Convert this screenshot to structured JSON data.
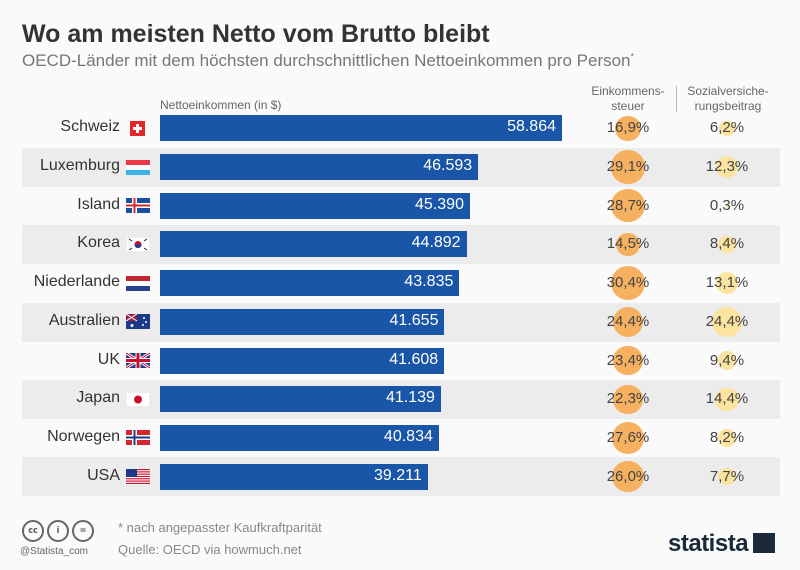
{
  "title": "Wo am meisten Netto vom Brutto bleibt",
  "subtitle": "OECD-Länder mit dem höchsten durchschnittlichen Nettoeinkommen pro Person",
  "subtitle_mark": "*",
  "colors": {
    "bar": "#1a56a8",
    "tax_bubble": "#f5b060",
    "social_bubble": "#fbe3a0",
    "alt_row": "#ececec"
  },
  "chart_data": {
    "type": "bar",
    "orientation": "horizontal",
    "series_label": "Nettoeinkommen (in $)",
    "tax_label_1": "Einkommens-",
    "tax_label_2": "steuer",
    "social_label_1": "Sozialversiche-",
    "social_label_2": "rungsbeitrag",
    "categories": [
      "Schweiz",
      "Luxemburg",
      "Island",
      "Korea",
      "Niederlande",
      "Australien",
      "UK",
      "Japan",
      "Norwegen",
      "USA"
    ],
    "values": [
      58864,
      46593,
      45390,
      44892,
      43835,
      41655,
      41608,
      41139,
      40834,
      39211
    ],
    "value_labels": [
      "58.864",
      "46.593",
      "45.390",
      "44.892",
      "43.835",
      "41.655",
      "41.608",
      "41.139",
      "40.834",
      "39.211"
    ],
    "tax": [
      16.9,
      29.1,
      28.7,
      14.5,
      30.4,
      24.4,
      23.4,
      22.3,
      27.6,
      26.0
    ],
    "tax_labels": [
      "16,9%",
      "29,1%",
      "28,7%",
      "14,5%",
      "30,4%",
      "24,4%",
      "23,4%",
      "22,3%",
      "27,6%",
      "26,0%"
    ],
    "social": [
      6.2,
      12.3,
      0.3,
      8.4,
      13.1,
      24.4,
      9.4,
      14.4,
      8.2,
      7.7
    ],
    "social_labels": [
      "6,2%",
      "12,3%",
      "0,3%",
      "8,4%",
      "13,1%",
      "24,4%",
      "9,4%",
      "14,4%",
      "8,2%",
      "7,7%"
    ],
    "flags": [
      "ch",
      "lu",
      "is",
      "kr",
      "nl",
      "au",
      "gb",
      "jp",
      "no",
      "us"
    ]
  },
  "footer": {
    "note": "* nach angepasster Kaufkraftparität",
    "source": "Quelle: OECD via howmuch.net",
    "handle": "@Statista_com",
    "logo": "statista"
  }
}
